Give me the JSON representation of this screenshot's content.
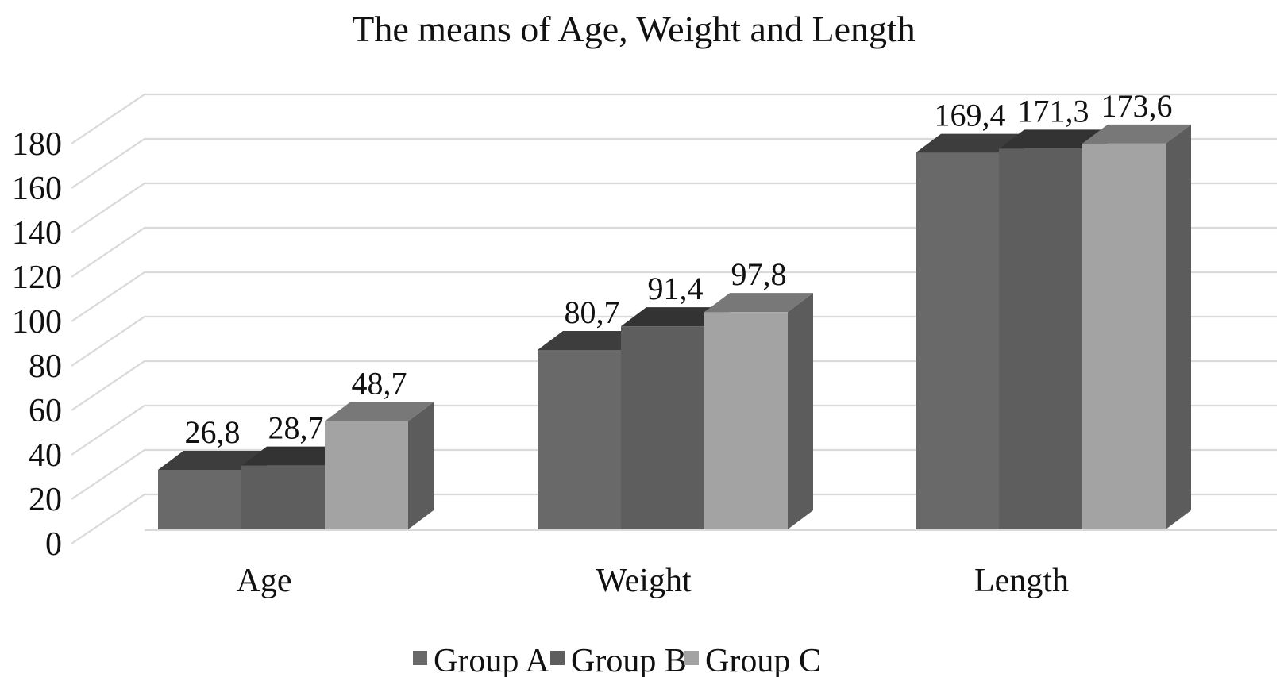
{
  "chart_data": {
    "type": "bar",
    "variant": "3d-column",
    "title": "The means of Age, Weight and Length",
    "categories": [
      "Age",
      "Weight",
      "Length"
    ],
    "series": [
      {
        "name": "Group A",
        "values": [
          26.8,
          80.7,
          169.4
        ],
        "labels": [
          "26,8",
          "80,7",
          "169,4"
        ],
        "color_front": "#696969",
        "color_top": "#3d3d3d",
        "color_side": "#4e4e4e"
      },
      {
        "name": "Group B",
        "values": [
          28.7,
          91.4,
          171.3
        ],
        "labels": [
          "28,7",
          "91,4",
          "171,3"
        ],
        "color_front": "#5e5e5e",
        "color_top": "#333333",
        "color_side": "#454545"
      },
      {
        "name": "Group C",
        "values": [
          48.7,
          97.8,
          173.6
        ],
        "labels": [
          "48,7",
          "97,8",
          "173,6"
        ],
        "color_front": "#a3a3a3",
        "color_top": "#787878",
        "color_side": "#5c5c5c"
      }
    ],
    "y_axis": {
      "min": 0,
      "max": 180,
      "step": 20,
      "ticks": [
        "0",
        "20",
        "40",
        "60",
        "80",
        "100",
        "120",
        "140",
        "160",
        "180"
      ]
    },
    "legend": {
      "position": "bottom",
      "items": [
        "Group A",
        "Group B",
        "Group C"
      ]
    },
    "grid_on": true,
    "grid_color": "#d9d9d9",
    "text_color": "#111111",
    "background": "#ffffff"
  }
}
